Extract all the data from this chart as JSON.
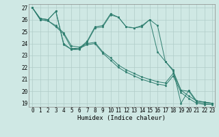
{
  "background_color": "#cfe8e4",
  "grid_color": "#b0ccc8",
  "line_color": "#2d7d6e",
  "xlabel": "Humidex (Indice chaleur)",
  "ylim_min": 18.7,
  "ylim_max": 27.3,
  "xlim_min": -0.5,
  "xlim_max": 23.3,
  "yticks": [
    19,
    20,
    21,
    22,
    23,
    24,
    25,
    26,
    27
  ],
  "xticks": [
    0,
    1,
    2,
    3,
    4,
    5,
    6,
    7,
    8,
    9,
    10,
    11,
    12,
    13,
    14,
    15,
    16,
    17,
    18,
    19,
    20,
    21,
    22,
    23
  ],
  "series": [
    [
      27.0,
      26.1,
      26.0,
      26.7,
      24.0,
      23.5,
      23.5,
      24.1,
      25.3,
      25.4,
      26.4,
      26.2,
      25.4,
      25.3,
      25.4,
      26.0,
      23.3,
      22.5,
      21.8,
      19.0,
      20.1,
      19.2,
      19.1,
      19.0
    ],
    [
      27.0,
      26.0,
      25.9,
      25.5,
      24.9,
      23.8,
      23.7,
      24.0,
      24.1,
      23.3,
      22.8,
      22.2,
      21.8,
      21.5,
      21.2,
      21.0,
      20.8,
      20.7,
      21.5,
      20.1,
      19.6,
      19.2,
      19.1,
      19.0
    ],
    [
      27.0,
      26.0,
      25.9,
      25.4,
      24.8,
      23.6,
      23.6,
      23.9,
      24.0,
      23.2,
      22.6,
      22.0,
      21.6,
      21.3,
      21.0,
      20.8,
      20.6,
      20.5,
      21.3,
      19.9,
      19.4,
      19.0,
      18.9,
      18.9
    ],
    [
      27.0,
      26.1,
      26.0,
      26.7,
      23.9,
      23.5,
      23.6,
      24.2,
      25.4,
      25.5,
      26.5,
      26.2,
      25.4,
      25.3,
      25.5,
      26.0,
      25.5,
      22.5,
      21.7,
      20.1,
      20.0,
      19.1,
      19.0,
      19.0
    ]
  ],
  "tick_fontsize": 5.5,
  "xlabel_fontsize": 6.5,
  "linewidth": 0.7,
  "markersize": 1.8
}
